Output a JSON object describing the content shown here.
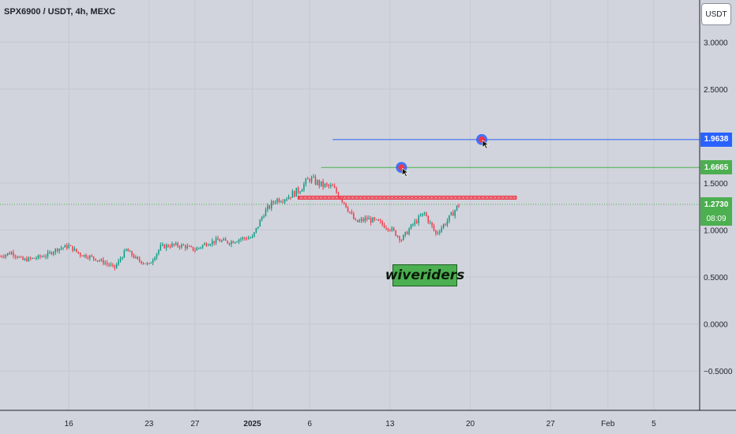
{
  "header": {
    "symbol": "SPX6900 / USDT, 4h, MEXC",
    "currency": "USDT"
  },
  "watermark": {
    "text": "wiveriders"
  },
  "price_labels": {
    "blue_target": {
      "value": "1.9638",
      "color": "#2962ff"
    },
    "green_target": {
      "value": "1.6665",
      "color": "#4caf50"
    },
    "current": {
      "value": "1.2730",
      "countdown": "08:09",
      "color": "#4caf50"
    }
  },
  "chart_data": {
    "type": "candlestick",
    "title": "SPX6900 / USDT, 4h, MEXC",
    "y_ticks": [
      {
        "value": 3.0,
        "label": "3.0000"
      },
      {
        "value": 2.5,
        "label": "2.5000"
      },
      {
        "value": 1.5,
        "label": "1.5000"
      },
      {
        "value": 1.0,
        "label": "1.0000"
      },
      {
        "value": 0.5,
        "label": "0.5000"
      },
      {
        "value": 0.0,
        "label": "0.0000"
      },
      {
        "value": -0.5,
        "label": "−0.5000"
      }
    ],
    "ylim": [
      -0.92,
      3.45
    ],
    "x_ticks": [
      {
        "date": "2024-12-16",
        "label": "16"
      },
      {
        "date": "2024-12-23",
        "label": "23"
      },
      {
        "date": "2024-12-27",
        "label": "27"
      },
      {
        "date": "2025-01-01",
        "label": "2025"
      },
      {
        "date": "2025-01-06",
        "label": "6"
      },
      {
        "date": "2025-01-13",
        "label": "13"
      },
      {
        "date": "2025-01-20",
        "label": "20"
      },
      {
        "date": "2025-01-27",
        "label": "27"
      },
      {
        "date": "2025-02-01",
        "label": "Feb"
      },
      {
        "date": "2025-02-05",
        "label": "5"
      }
    ],
    "xlim": [
      "2024-12-10",
      "2025-02-09"
    ],
    "price_path": [
      [
        "2024-12-10",
        0.72
      ],
      [
        "2024-12-11",
        0.76
      ],
      [
        "2024-12-12",
        0.68
      ],
      [
        "2024-12-13",
        0.7
      ],
      [
        "2024-12-14",
        0.73
      ],
      [
        "2024-12-15",
        0.8
      ],
      [
        "2024-12-16",
        0.83
      ],
      [
        "2024-12-17",
        0.74
      ],
      [
        "2024-12-18",
        0.71
      ],
      [
        "2024-12-19",
        0.66
      ],
      [
        "2024-12-20",
        0.6
      ],
      [
        "2024-12-21",
        0.79
      ],
      [
        "2024-12-22",
        0.68
      ],
      [
        "2024-12-23",
        0.63
      ],
      [
        "2024-12-24",
        0.82
      ],
      [
        "2024-12-25",
        0.84
      ],
      [
        "2024-12-26",
        0.83
      ],
      [
        "2024-12-27",
        0.79
      ],
      [
        "2024-12-28",
        0.86
      ],
      [
        "2024-12-29",
        0.89
      ],
      [
        "2024-12-30",
        0.87
      ],
      [
        "2024-12-31",
        0.91
      ],
      [
        "2025-01-01",
        0.92
      ],
      [
        "2025-01-02",
        1.18
      ],
      [
        "2025-01-03",
        1.32
      ],
      [
        "2025-01-04",
        1.35
      ],
      [
        "2025-01-05",
        1.42
      ],
      [
        "2025-01-06",
        1.55
      ],
      [
        "2025-01-07",
        1.48
      ],
      [
        "2025-01-08",
        1.45
      ],
      [
        "2025-01-09",
        1.3
      ],
      [
        "2025-01-10",
        1.08
      ],
      [
        "2025-01-11",
        1.12
      ],
      [
        "2025-01-12",
        1.08
      ],
      [
        "2025-01-13",
        1.02
      ],
      [
        "2025-01-14",
        0.9
      ],
      [
        "2025-01-15",
        1.06
      ],
      [
        "2025-01-16",
        1.18
      ],
      [
        "2025-01-17",
        0.96
      ],
      [
        "2025-01-18",
        1.1
      ],
      [
        "2025-01-19",
        1.27
      ]
    ],
    "current_price": 1.273,
    "annotations": {
      "blue_target": {
        "value": 1.9638,
        "from": "2025-01-08",
        "color": "#2962ff"
      },
      "green_target": {
        "value": 1.6665,
        "from": "2025-01-07",
        "color": "#4caf50"
      },
      "resistance_zone": {
        "low": 1.33,
        "high": 1.36,
        "from": "2025-01-05",
        "to": "2025-01-24",
        "color": "#f23645"
      },
      "target_markers": [
        {
          "date": "2025-01-14",
          "value": 1.6665
        },
        {
          "date": "2025-01-21",
          "value": 1.9638
        }
      ]
    },
    "colors": {
      "up": "#089981",
      "down": "#f23645",
      "background": "#d1d4dc"
    }
  }
}
